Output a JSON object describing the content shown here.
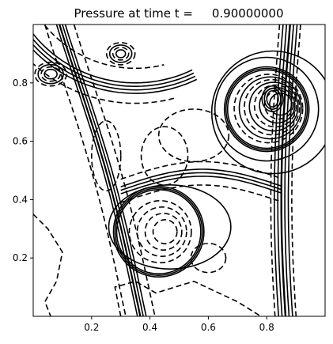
{
  "chart_data": {
    "type": "contour",
    "title": "Pressure at time t =     0.90000000",
    "xlabel": "",
    "ylabel": "",
    "xlim": [
      0.0,
      1.0
    ],
    "ylim": [
      0.0,
      1.0
    ],
    "x_ticks": [
      0.2,
      0.4,
      0.6,
      0.8
    ],
    "y_ticks": [
      0.2,
      0.4,
      0.6,
      0.8
    ],
    "x_tick_labels": [
      "0.2",
      "0.4",
      "0.6",
      "0.8"
    ],
    "y_tick_labels": [
      "0.2",
      "0.4",
      "0.6",
      "0.8"
    ],
    "grid": false,
    "line_color": "#000000",
    "negative_levels_style": "dashed",
    "positive_levels_style": "solid",
    "features": [
      {
        "name": "ring-upper-right",
        "center": [
          0.8,
          0.71
        ],
        "radius": 0.145
      },
      {
        "name": "ring-lower-left",
        "center": [
          0.43,
          0.29
        ],
        "radius": 0.155
      },
      {
        "name": "inner-loop-upper-right",
        "center": [
          0.82,
          0.74
        ],
        "radius": 0.04
      }
    ]
  }
}
